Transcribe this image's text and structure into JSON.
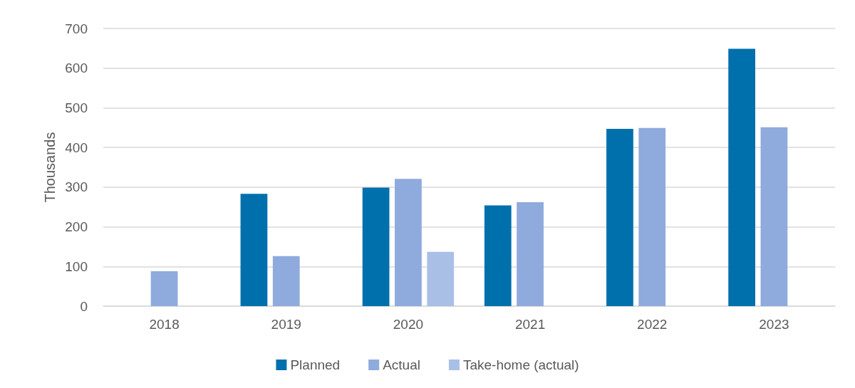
{
  "chart_data": {
    "type": "bar",
    "ylabel": "Thousands",
    "categories": [
      "2018",
      "2019",
      "2020",
      "2021",
      "2022",
      "2023"
    ],
    "series": [
      {
        "name": "Planned",
        "color": "#0070ad",
        "values": [
          null,
          283,
          299,
          254,
          447,
          649
        ]
      },
      {
        "name": "Actual",
        "color": "#8faadc",
        "values": [
          88,
          126,
          321,
          262,
          449,
          451
        ]
      },
      {
        "name": "Take-home (actual)",
        "color": "#a9bfe6",
        "values": [
          null,
          null,
          137,
          null,
          null,
          null
        ]
      }
    ],
    "ylim": [
      0,
      700
    ],
    "yticks": [
      0,
      100,
      200,
      300,
      400,
      500,
      600,
      700
    ],
    "grid": "y",
    "legend": "bottom"
  }
}
